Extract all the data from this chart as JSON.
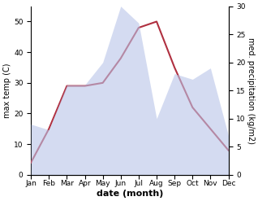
{
  "months": [
    "Jan",
    "Feb",
    "Mar",
    "Apr",
    "May",
    "Jun",
    "Jul",
    "Aug",
    "Sep",
    "Oct",
    "Nov",
    "Dec"
  ],
  "temperature": [
    4,
    15,
    29,
    29,
    30,
    38,
    48,
    50,
    35,
    22,
    15,
    8
  ],
  "precipitation": [
    9,
    8,
    16,
    16,
    20,
    30,
    27,
    10,
    18,
    17,
    19,
    7
  ],
  "temp_color": "#b03040",
  "precip_fill_color": "#b8c4e8",
  "temp_ylim": [
    0,
    55
  ],
  "precip_ylim": [
    0,
    30
  ],
  "xlabel": "date (month)",
  "ylabel_left": "max temp (C)",
  "ylabel_right": "med. precipitation (kg/m2)",
  "bg_color": "#ffffff",
  "left_yticks": [
    0,
    10,
    20,
    30,
    40,
    50
  ],
  "right_yticks": [
    0,
    5,
    10,
    15,
    20,
    25,
    30
  ],
  "tick_fontsize": 6.5,
  "label_fontsize": 7,
  "xlabel_fontsize": 8
}
